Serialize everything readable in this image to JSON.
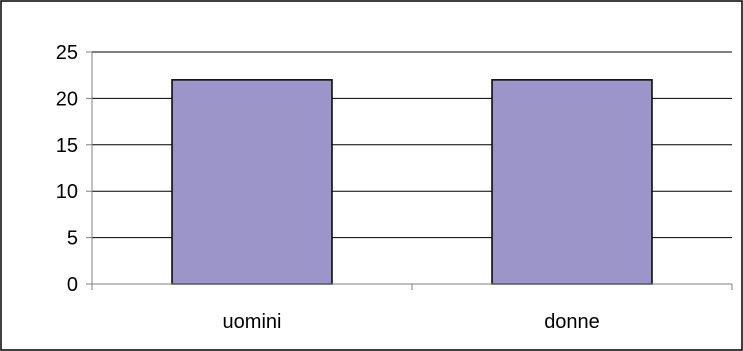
{
  "chart_data": {
    "type": "bar",
    "title": "",
    "xlabel": "",
    "ylabel": "",
    "categories": [
      "uomini",
      "donne"
    ],
    "series": [
      {
        "values": [
          22,
          22
        ]
      }
    ],
    "ylim": [
      0,
      25
    ],
    "yticks": [
      0,
      5,
      10,
      15,
      20,
      25
    ],
    "yticks_labels": [
      "0",
      "5",
      "10",
      "15",
      "20",
      "25"
    ],
    "grid": true,
    "legend": "none",
    "colors": {
      "bar_fill": "#9b95c9",
      "bar_stroke": "#000000",
      "gridline": "#000000",
      "axis": "#808080",
      "frame": "#000000"
    }
  }
}
